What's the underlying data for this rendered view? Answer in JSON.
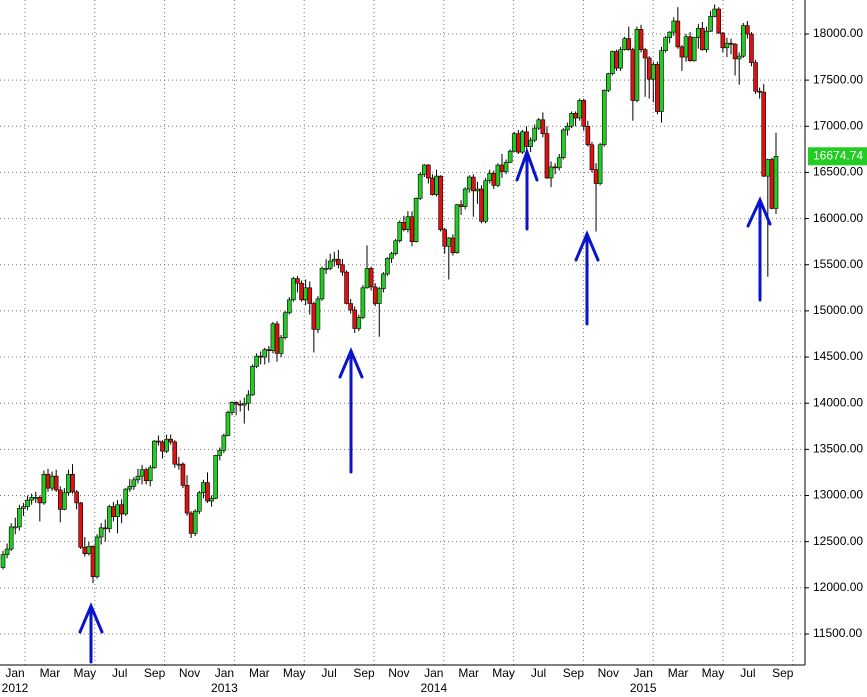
{
  "chart_data": {
    "type": "candlestick",
    "ohlc": [
      [
        12220,
        12400,
        12200,
        12360
      ],
      [
        12360,
        12480,
        12320,
        12420
      ],
      [
        12420,
        12700,
        12400,
        12660
      ],
      [
        12660,
        12760,
        12580,
        12660
      ],
      [
        12660,
        12900,
        12620,
        12860
      ],
      [
        12860,
        12920,
        12780,
        12880
      ],
      [
        12880,
        13000,
        12840,
        12950
      ],
      [
        12950,
        13020,
        12900,
        12980
      ],
      [
        12980,
        13040,
        12920,
        12980
      ],
      [
        12980,
        13000,
        12720,
        12920
      ],
      [
        12920,
        13270,
        12900,
        13230
      ],
      [
        13230,
        13290,
        13040,
        13080
      ],
      [
        13080,
        13260,
        13050,
        13210
      ],
      [
        13210,
        13280,
        13040,
        13060
      ],
      [
        13060,
        13100,
        12710,
        12850
      ],
      [
        12850,
        13080,
        12840,
        13030
      ],
      [
        13030,
        13280,
        13000,
        13230
      ],
      [
        13230,
        13340,
        13020,
        13040
      ],
      [
        13040,
        13060,
        12850,
        12920
      ],
      [
        12920,
        12930,
        12420,
        12440
      ],
      [
        12440,
        12550,
        12340,
        12370
      ],
      [
        12370,
        12500,
        12350,
        12450
      ],
      [
        12450,
        12460,
        12050,
        12120
      ],
      [
        12120,
        12580,
        12100,
        12550
      ],
      [
        12550,
        12700,
        12470,
        12650
      ],
      [
        12650,
        12740,
        12500,
        12640
      ],
      [
        12640,
        12900,
        12600,
        12880
      ],
      [
        12880,
        12930,
        12720,
        12770
      ],
      [
        12770,
        12950,
        12590,
        12900
      ],
      [
        12900,
        12960,
        12700,
        12800
      ],
      [
        12800,
        13080,
        12780,
        13070
      ],
      [
        13070,
        13180,
        13040,
        13100
      ],
      [
        13100,
        13200,
        13060,
        13170
      ],
      [
        13170,
        13290,
        13130,
        13210
      ],
      [
        13210,
        13330,
        13120,
        13280
      ],
      [
        13280,
        13300,
        13120,
        13160
      ],
      [
        13160,
        13330,
        13100,
        13300
      ],
      [
        13300,
        13600,
        13290,
        13590
      ],
      [
        13590,
        13650,
        13540,
        13580
      ],
      [
        13580,
        13600,
        13400,
        13480
      ],
      [
        13480,
        13660,
        13460,
        13610
      ],
      [
        13610,
        13660,
        13550,
        13580
      ],
      [
        13580,
        13600,
        13300,
        13340
      ],
      [
        13340,
        13420,
        13280,
        13340
      ],
      [
        13340,
        13360,
        13080,
        13110
      ],
      [
        13110,
        13220,
        12780,
        12810
      ],
      [
        12810,
        12830,
        12540,
        12590
      ],
      [
        12590,
        12850,
        12560,
        12830
      ],
      [
        12830,
        13050,
        12800,
        13030
      ],
      [
        13030,
        13170,
        12970,
        13140
      ],
      [
        13140,
        13250,
        12920,
        12940
      ],
      [
        12940,
        13000,
        12880,
        12970
      ],
      [
        12970,
        13440,
        12960,
        13435
      ],
      [
        13435,
        13520,
        13380,
        13490
      ],
      [
        13490,
        13670,
        13460,
        13650
      ],
      [
        13650,
        13920,
        13640,
        13900
      ],
      [
        13900,
        14020,
        13870,
        14010
      ],
      [
        14010,
        14020,
        13870,
        13990
      ],
      [
        13990,
        14030,
        13910,
        13980
      ],
      [
        13980,
        14060,
        13780,
        14000
      ],
      [
        14000,
        14140,
        13920,
        14090
      ],
      [
        14090,
        14420,
        14080,
        14400
      ],
      [
        14400,
        14540,
        14380,
        14510
      ],
      [
        14510,
        14560,
        14420,
        14500
      ],
      [
        14500,
        14600,
        14420,
        14580
      ],
      [
        14580,
        14620,
        14440,
        14570
      ],
      [
        14570,
        14880,
        14540,
        14860
      ],
      [
        14860,
        14890,
        14450,
        14540
      ],
      [
        14540,
        14740,
        14500,
        14710
      ],
      [
        14710,
        15000,
        14690,
        14980
      ],
      [
        14980,
        15150,
        14960,
        15120
      ],
      [
        15120,
        15370,
        15100,
        15350
      ],
      [
        15350,
        15380,
        15200,
        15300
      ],
      [
        15300,
        15330,
        15100,
        15120
      ],
      [
        15120,
        15340,
        15060,
        15250
      ],
      [
        15250,
        15320,
        14960,
        15080
      ],
      [
        15080,
        15100,
        14550,
        14800
      ],
      [
        14800,
        15160,
        14760,
        15130
      ],
      [
        15130,
        15480,
        15110,
        15460
      ],
      [
        15460,
        15560,
        15400,
        15460
      ],
      [
        15460,
        15620,
        15440,
        15540
      ],
      [
        15540,
        15640,
        15480,
        15560
      ],
      [
        15560,
        15660,
        15460,
        15500
      ],
      [
        15500,
        15560,
        15380,
        15420
      ],
      [
        15420,
        15440,
        15070,
        15080
      ],
      [
        15080,
        15130,
        14970,
        15010
      ],
      [
        15010,
        15050,
        14760,
        14810
      ],
      [
        14810,
        14960,
        14780,
        14930
      ],
      [
        14930,
        15280,
        14910,
        15250
      ],
      [
        15250,
        15710,
        15240,
        15460
      ],
      [
        15460,
        15480,
        15220,
        15260
      ],
      [
        15260,
        15300,
        15050,
        15080
      ],
      [
        15080,
        15260,
        14720,
        15240
      ],
      [
        15240,
        15420,
        15200,
        15400
      ],
      [
        15400,
        15580,
        15380,
        15570
      ],
      [
        15570,
        15640,
        15520,
        15620
      ],
      [
        15620,
        15780,
        15600,
        15760
      ],
      [
        15760,
        15980,
        15740,
        15960
      ],
      [
        15960,
        16030,
        15860,
        15880
      ],
      [
        15880,
        16080,
        15850,
        16020
      ],
      [
        16020,
        16080,
        15700,
        15750
      ],
      [
        15750,
        16230,
        15740,
        16220
      ],
      [
        16220,
        16500,
        16200,
        16480
      ],
      [
        16480,
        16590,
        16450,
        16580
      ],
      [
        16580,
        16590,
        16380,
        16440
      ],
      [
        16440,
        16480,
        16250,
        16260
      ],
      [
        16260,
        16530,
        16240,
        16460
      ],
      [
        16460,
        16470,
        15860,
        15880
      ],
      [
        15880,
        15900,
        15620,
        15700
      ],
      [
        15700,
        15800,
        15340,
        15790
      ],
      [
        15790,
        15830,
        15600,
        15630
      ],
      [
        15630,
        16160,
        15620,
        16150
      ],
      [
        16150,
        16200,
        16040,
        16130
      ],
      [
        16130,
        16340,
        16100,
        16320
      ],
      [
        16320,
        16470,
        16280,
        16450
      ],
      [
        16450,
        16480,
        16020,
        16300
      ],
      [
        16300,
        16400,
        16160,
        16320
      ],
      [
        16320,
        16360,
        15950,
        15970
      ],
      [
        15970,
        16440,
        15950,
        16410
      ],
      [
        16410,
        16530,
        16380,
        16490
      ],
      [
        16490,
        16520,
        16320,
        16360
      ],
      [
        16360,
        16600,
        16340,
        16580
      ],
      [
        16580,
        16700,
        16440,
        16510
      ],
      [
        16510,
        16640,
        16480,
        16610
      ],
      [
        16610,
        16750,
        16600,
        16730
      ],
      [
        16730,
        16940,
        16720,
        16920
      ],
      [
        16920,
        16960,
        16700,
        16720
      ],
      [
        16720,
        16960,
        16700,
        16940
      ],
      [
        16940,
        17000,
        16750,
        16780
      ],
      [
        16780,
        16880,
        16720,
        16850
      ],
      [
        16850,
        17020,
        16830,
        16980
      ],
      [
        16980,
        17090,
        16960,
        17070
      ],
      [
        17070,
        17150,
        16880,
        16920
      ],
      [
        16920,
        17000,
        16430,
        16440
      ],
      [
        16440,
        16620,
        16340,
        16560
      ],
      [
        16560,
        16600,
        16480,
        16550
      ],
      [
        16550,
        16700,
        16520,
        16660
      ],
      [
        16660,
        16980,
        16640,
        16960
      ],
      [
        16960,
        17040,
        16900,
        17000
      ],
      [
        17000,
        17160,
        16980,
        17140
      ],
      [
        17140,
        17160,
        17000,
        17090
      ],
      [
        17090,
        17300,
        17060,
        17280
      ],
      [
        17280,
        17300,
        16950,
        17000
      ],
      [
        17000,
        17060,
        16780,
        16800
      ],
      [
        16800,
        16830,
        16500,
        16530
      ],
      [
        16530,
        16600,
        15860,
        16380
      ],
      [
        16380,
        16820,
        16360,
        16800
      ],
      [
        16800,
        17400,
        16780,
        17390
      ],
      [
        17390,
        17580,
        17370,
        17570
      ],
      [
        17570,
        17820,
        17550,
        17810
      ],
      [
        17810,
        17830,
        17600,
        17630
      ],
      [
        17630,
        17860,
        17600,
        17830
      ],
      [
        17830,
        17970,
        17820,
        17950
      ],
      [
        17950,
        18080,
        17820,
        17830
      ],
      [
        17830,
        17850,
        17060,
        17280
      ],
      [
        17280,
        18080,
        17260,
        18050
      ],
      [
        18050,
        18100,
        17800,
        17830
      ],
      [
        17830,
        17850,
        17320,
        17740
      ],
      [
        17740,
        17760,
        17300,
        17510
      ],
      [
        17510,
        17700,
        17260,
        17670
      ],
      [
        17670,
        17700,
        17130,
        17160
      ],
      [
        17160,
        17860,
        17040,
        17820
      ],
      [
        17820,
        17980,
        17800,
        17960
      ],
      [
        17960,
        18030,
        17900,
        18020
      ],
      [
        18020,
        18180,
        17980,
        18140
      ],
      [
        18140,
        18290,
        17840,
        17860
      ],
      [
        17860,
        17880,
        17600,
        17750
      ],
      [
        17750,
        18000,
        17700,
        17970
      ],
      [
        17970,
        18020,
        17700,
        17710
      ],
      [
        17710,
        17970,
        17700,
        17960
      ],
      [
        17960,
        18110,
        17840,
        18060
      ],
      [
        18060,
        18130,
        17820,
        17830
      ],
      [
        17830,
        18080,
        17800,
        18030
      ],
      [
        18030,
        18250,
        18020,
        18190
      ],
      [
        18190,
        18320,
        18180,
        18270
      ],
      [
        18270,
        18290,
        18000,
        18010
      ],
      [
        18010,
        18020,
        17800,
        17850
      ],
      [
        17850,
        17960,
        17750,
        17900
      ],
      [
        17900,
        17950,
        17780,
        17890
      ],
      [
        17890,
        17900,
        17550,
        17730
      ],
      [
        17730,
        17800,
        17450,
        17760
      ],
      [
        17760,
        18120,
        17740,
        18090
      ],
      [
        18090,
        18140,
        17950,
        18000
      ],
      [
        18000,
        18020,
        17650,
        17690
      ],
      [
        17690,
        17720,
        17350,
        17380
      ],
      [
        17380,
        17420,
        17300,
        17370
      ],
      [
        17370,
        17460,
        16450,
        16460
      ],
      [
        16460,
        16650,
        15370,
        16640
      ],
      [
        16640,
        16660,
        16100,
        16110
      ],
      [
        16110,
        16930,
        16050,
        16674.74
      ]
    ],
    "up_color": "#22cc22",
    "down_color": "#dd1111",
    "months": [
      "Jan",
      "Mar",
      "May",
      "Jul",
      "Sep",
      "Nov",
      "Jan",
      "Mar",
      "May",
      "Jul",
      "Sep",
      "Nov",
      "Jan",
      "Mar",
      "May",
      "Jul",
      "Sep",
      "Nov",
      "Jan",
      "Mar",
      "May",
      "Jul",
      "Sep"
    ],
    "years": [
      "2012",
      "2013",
      "2014",
      "2015"
    ],
    "ylim": [
      11164,
      18368
    ],
    "yticks": [
      {
        "value": 11500,
        "label": "11500.00"
      },
      {
        "value": 12000,
        "label": "12000.00"
      },
      {
        "value": 12500,
        "label": "12500.00"
      },
      {
        "value": 13000,
        "label": "13000.00"
      },
      {
        "value": 13500,
        "label": "13500.00"
      },
      {
        "value": 14000,
        "label": "14000.00"
      },
      {
        "value": 14500,
        "label": "14500.00"
      },
      {
        "value": 15000,
        "label": "15000.00"
      },
      {
        "value": 15500,
        "label": "15500.00"
      },
      {
        "value": 16000,
        "label": "16000.00"
      },
      {
        "value": 16500,
        "label": "16500.00"
      },
      {
        "value": 17000,
        "label": "17000.00"
      },
      {
        "value": 17500,
        "label": "17500.00"
      },
      {
        "value": 18000,
        "label": "18000.00"
      }
    ],
    "grid": true
  }
}
